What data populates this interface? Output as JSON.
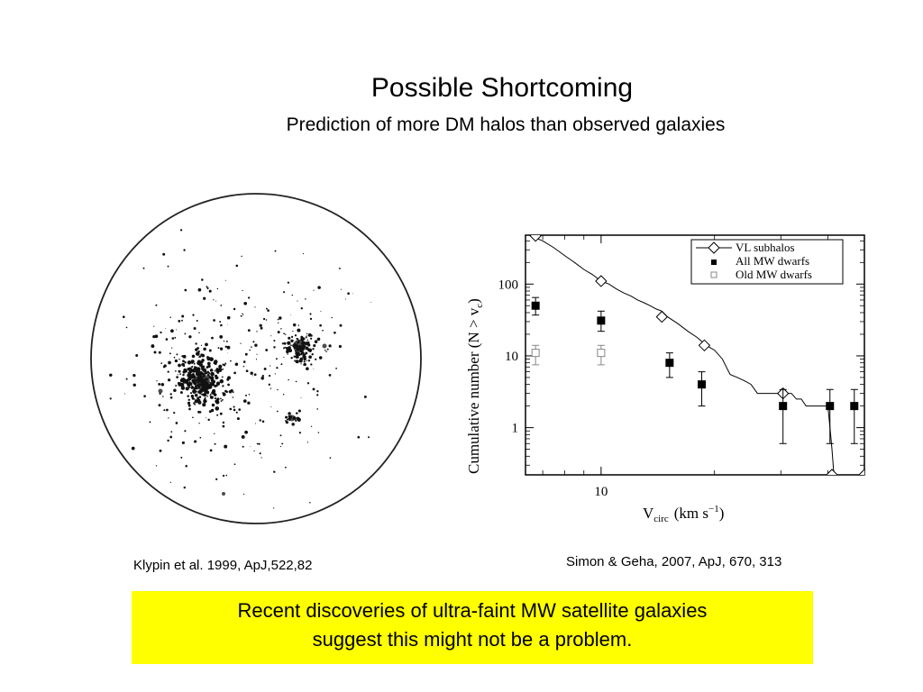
{
  "slide": {
    "title": "Possible  Shortcoming",
    "subtitle": "Prediction of more DM halos than observed galaxies",
    "credit_left": "Klypin et al. 1999, ApJ,522,82",
    "credit_right": "Simon & Geha, 2007, ApJ, 670, 313",
    "callout_line1": "Recent discoveries of ultra-faint MW satellite galaxies",
    "callout_line2": "suggest this might not be a problem.",
    "callout_color": "#ffff00"
  },
  "chart_data": {
    "type": "scatter",
    "xlabel": "V",
    "xlabel_sub": "circ",
    "xlabel_units": "(km s",
    "xlabel_exp": "−1",
    "xlabel_close": ")",
    "ylabel": "Cumulative number (N > v",
    "ylabel_sub": "c",
    "ylabel_close": ")",
    "x_scale": "log",
    "y_scale": "log",
    "xlim": [
      6.3,
      50
    ],
    "ylim": [
      0.22,
      480
    ],
    "x_ticks": [
      {
        "value": 10,
        "label": "10"
      }
    ],
    "y_ticks": [
      {
        "value": 1,
        "label": "1"
      },
      {
        "value": 10,
        "label": "10"
      },
      {
        "value": 100,
        "label": "100"
      }
    ],
    "legend": {
      "position": "top-right",
      "entries": [
        "VL subhalos",
        "All MW dwarfs",
        "Old MW dwarfs"
      ]
    },
    "series": [
      {
        "name": "VL subhalos",
        "kind": "step-line",
        "color": "#000000",
        "x": [
          6.5,
          7.0,
          7.5,
          8.0,
          8.5,
          9.0,
          9.5,
          10.0,
          10.5,
          11.0,
          11.5,
          12.0,
          12.5,
          13.0,
          13.5,
          14.0,
          14.5,
          15.0,
          16.0,
          17.0,
          18.0,
          19.0,
          20.0,
          21.0,
          21.5,
          22.0,
          23.0,
          24.0,
          25.0,
          26.0,
          27.0,
          28.0,
          30.0,
          31.0,
          32.0,
          33.0,
          34.0,
          35.0,
          36.0,
          38.0,
          40.0,
          40.5,
          41.0,
          41.5
        ],
        "y": [
          470,
          400,
          320,
          250,
          200,
          160,
          135,
          110,
          100,
          85,
          75,
          68,
          60,
          55,
          50,
          45,
          42,
          35,
          28,
          22,
          18,
          14,
          12,
          9,
          7,
          5.5,
          5,
          4.5,
          4,
          3,
          3,
          3,
          3,
          3,
          3,
          2.5,
          2.5,
          2,
          2,
          2,
          2,
          1,
          0.5,
          0.22
        ]
      },
      {
        "name": "VL subhalos markers",
        "kind": "diamond",
        "color": "#000000",
        "x": [
          6.7,
          10.0,
          14.5,
          18.8,
          30.4,
          41.0,
          50.0
        ],
        "y": [
          470,
          110,
          35,
          14,
          3,
          0.22,
          0.22
        ]
      },
      {
        "name": "All MW dwarfs",
        "kind": "filled-square",
        "color": "#000000",
        "x": [
          6.7,
          10.0,
          15.2,
          18.5,
          30.4,
          40.5,
          47.0
        ],
        "y": [
          50,
          31,
          8,
          4,
          2,
          2,
          2
        ],
        "yerr_low": [
          37,
          22,
          5,
          2,
          0.6,
          0.6,
          0.6
        ],
        "yerr_high": [
          65,
          42,
          11,
          6,
          3.4,
          3.4,
          3.4
        ]
      },
      {
        "name": "Old MW dwarfs",
        "kind": "open-square",
        "color": "#888888",
        "x": [
          6.7,
          10.0
        ],
        "y": [
          11,
          11
        ],
        "yerr_low": [
          7.5,
          7.5
        ],
        "yerr_high": [
          14,
          14
        ]
      }
    ]
  },
  "simulation_figure": {
    "image": "dark-matter-halo-simulation-circle",
    "color": "#111111"
  }
}
